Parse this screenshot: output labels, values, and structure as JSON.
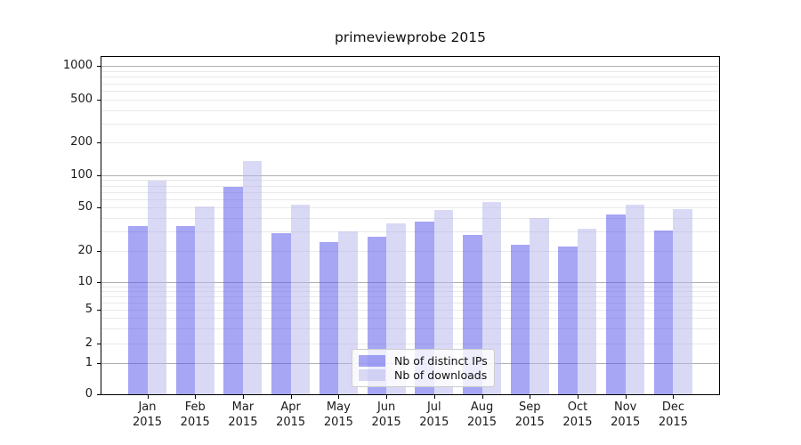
{
  "chart_data": {
    "type": "bar",
    "title": "primeviewprobe 2015",
    "xlabel": "",
    "ylabel": "",
    "yscale": "log (symlog: linear segment from 0 to 1)",
    "ylim": [
      0,
      1230
    ],
    "yticks": [
      0,
      1,
      2,
      5,
      10,
      20,
      50,
      100,
      200,
      500,
      1000
    ],
    "grid": "horizontal major (1,10,100,1000) dark gray + log minor light gray",
    "legend_position": "bottom-center inside plot",
    "categories": [
      "Jan 2015",
      "Feb 2015",
      "Mar 2015",
      "Apr 2015",
      "May 2015",
      "Jun 2015",
      "Jul 2015",
      "Aug 2015",
      "Sep 2015",
      "Oct 2015",
      "Nov 2015",
      "Dec 2015"
    ],
    "series": [
      {
        "name": "Nb of distinct IPs",
        "color": "#4d4de9",
        "fill_opacity": 0.5,
        "values": [
          34,
          34,
          78,
          29,
          24,
          27,
          37,
          28,
          23,
          22,
          43,
          31
        ]
      },
      {
        "name": "Nb of downloads",
        "color": "#b3b3ed",
        "fill_opacity": 0.5,
        "values": [
          89,
          51,
          136,
          53,
          30,
          36,
          47,
          56,
          40,
          32,
          53,
          48
        ]
      }
    ]
  }
}
